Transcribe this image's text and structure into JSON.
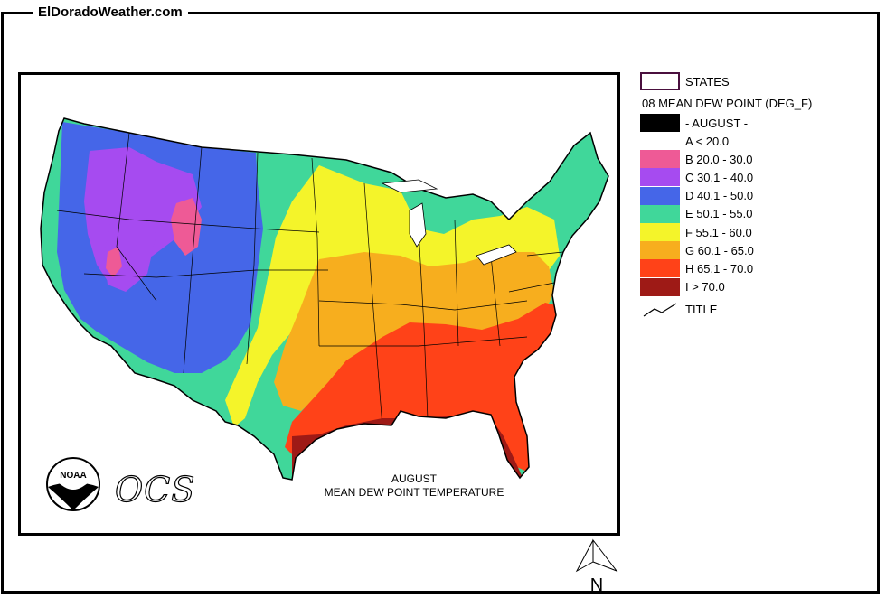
{
  "site_title": "ElDoradoWeather.com",
  "map": {
    "caption_line1": "AUGUST",
    "caption_line2": "MEAN DEW POINT TEMPERATURE",
    "logo_text": "NOAA",
    "ocs_text": "OCS",
    "north_label": "N"
  },
  "legend": {
    "states_label": "STATES",
    "layer_title": "08 MEAN DEW POINT (DEG_F)",
    "month_label": "- AUGUST -",
    "title_label": "TITLE",
    "classes": [
      {
        "label": "A < 20.0",
        "color": "#ffffff"
      },
      {
        "label": "B 20.0 - 30.0",
        "color": "#ee5a96"
      },
      {
        "label": "C 30.1 - 40.0",
        "color": "#a64bf0"
      },
      {
        "label": "D 40.1 - 50.0",
        "color": "#4566e8"
      },
      {
        "label": "E 50.1 - 55.0",
        "color": "#40d79a"
      },
      {
        "label": "F 55.1 - 60.0",
        "color": "#f4f42a"
      },
      {
        "label": "G 60.1 - 65.0",
        "color": "#f7ae1e"
      },
      {
        "label": "H 65.1 - 70.0",
        "color": "#ff4218"
      },
      {
        "label": "I > 70.0",
        "color": "#9e1a16"
      }
    ],
    "states_outline_color": "#4a0f3e",
    "month_swatch_color": "#000000"
  }
}
